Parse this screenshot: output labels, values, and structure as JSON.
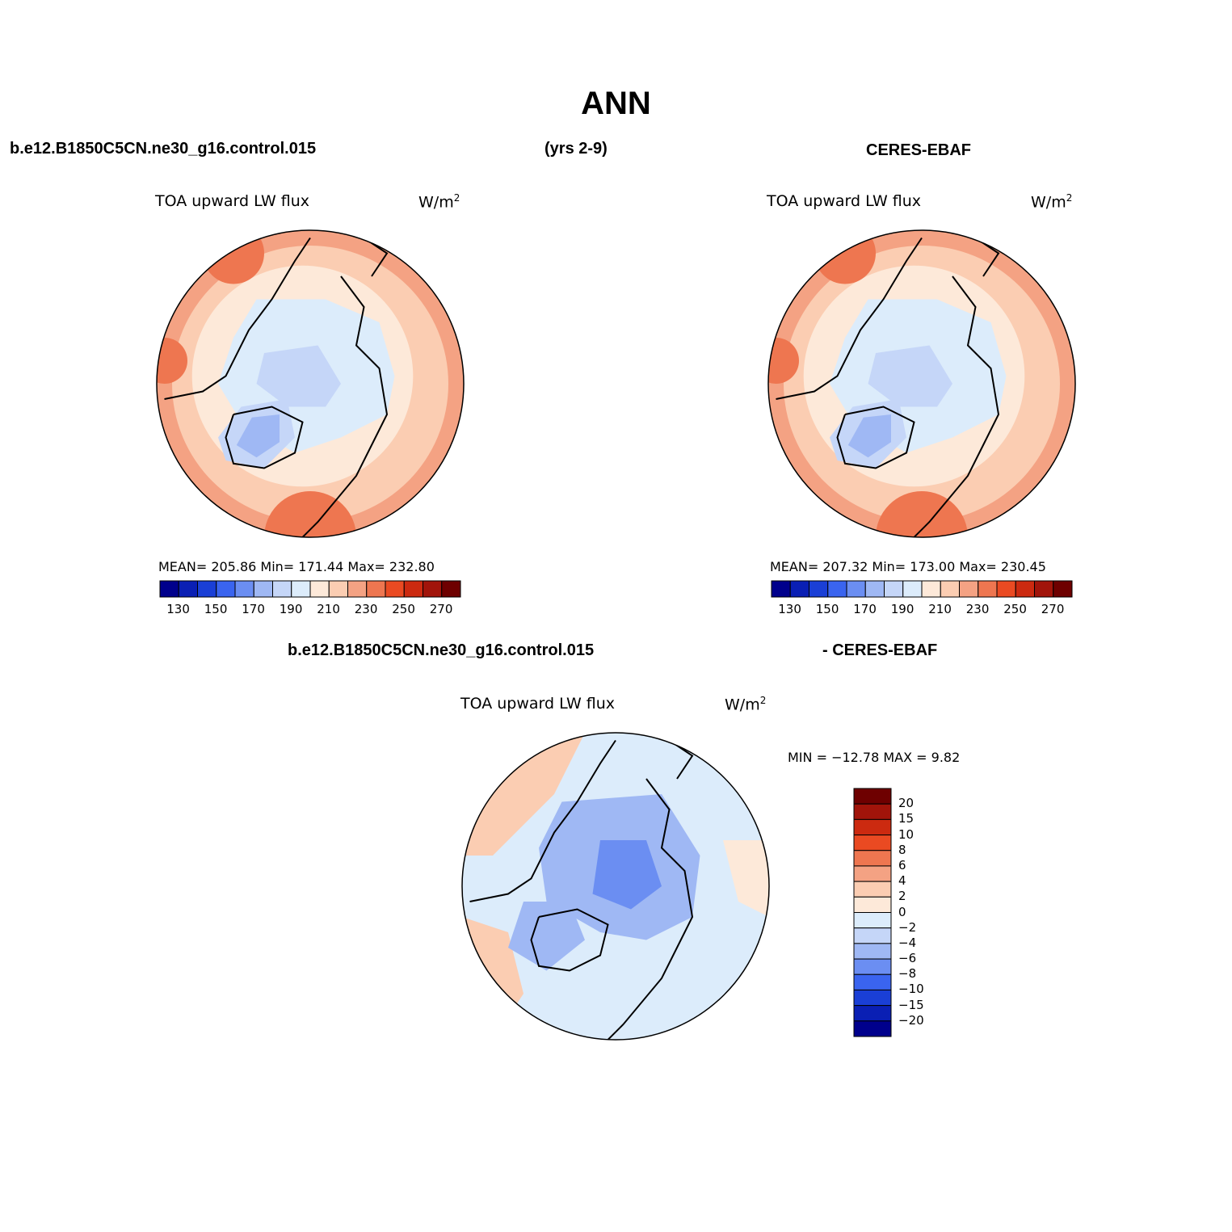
{
  "main_title": "ANN",
  "headers": {
    "case_name": "b.e12.B1850C5CN.ne30_g16.control.015",
    "years": "(yrs 2-9)",
    "obs_name": "CERES-EBAF",
    "diff_case": "b.e12.B1850C5CN.ne30_g16.control.015",
    "diff_obs": "- CERES-EBAF"
  },
  "panels": [
    {
      "id": "model",
      "title": "TOA upward LW flux",
      "units_base": "W/m",
      "units_exp": "2",
      "stats": {
        "mean": "205.86",
        "min": "171.44",
        "max": "232.80"
      },
      "stats_text": "MEAN= 205.86   Min= 171.44   Max= 232.80"
    },
    {
      "id": "obs",
      "title": "TOA upward LW flux",
      "units_base": "W/m",
      "units_exp": "2",
      "stats": {
        "mean": "207.32",
        "min": "173.00",
        "max": "230.45"
      },
      "stats_text": "MEAN= 207.32   Min= 173.00   Max= 230.45"
    },
    {
      "id": "diff",
      "title": "TOA upward LW flux",
      "units_base": "W/m",
      "units_exp": "2",
      "stats": {
        "min": "-12.78",
        "max": "9.82"
      },
      "stats_text": "MIN = −12.78 MAX =    9.82"
    }
  ],
  "abs_colorbar": {
    "levels": [
      130,
      140,
      150,
      160,
      170,
      180,
      190,
      200,
      210,
      220,
      230,
      240,
      250,
      260,
      270
    ],
    "tick_labels": [
      "130",
      "150",
      "170",
      "190",
      "210",
      "230",
      "250",
      "270"
    ],
    "colors": [
      "#00008c",
      "#0a1fb4",
      "#1a3fd6",
      "#3a64ef",
      "#6b8ef2",
      "#9fb8f4",
      "#c5d6f8",
      "#dcecfb",
      "#fde9d9",
      "#fbcdb2",
      "#f4a283",
      "#ee7650",
      "#ea4a22",
      "#cc2a10",
      "#a1140a",
      "#6e0000"
    ]
  },
  "diff_colorbar": {
    "levels": [
      20,
      15,
      10,
      8,
      6,
      4,
      2,
      0,
      -2,
      -4,
      -6,
      -8,
      -10,
      -15,
      -20
    ],
    "tick_labels": [
      "20",
      "15",
      "10",
      "8",
      "6",
      "4",
      "2",
      "0",
      "−2",
      "−4",
      "−6",
      "−8",
      "−10",
      "−15",
      "−20"
    ],
    "colors": [
      "#6e0000",
      "#a1140a",
      "#cc2a10",
      "#ea4a22",
      "#ee7650",
      "#f4a283",
      "#fbcdb2",
      "#fde9d9",
      "#dcecfb",
      "#c5d6f8",
      "#9fb8f4",
      "#6b8ef2",
      "#3a64ef",
      "#1a3fd6",
      "#0a1fb4",
      "#00008c"
    ]
  }
}
